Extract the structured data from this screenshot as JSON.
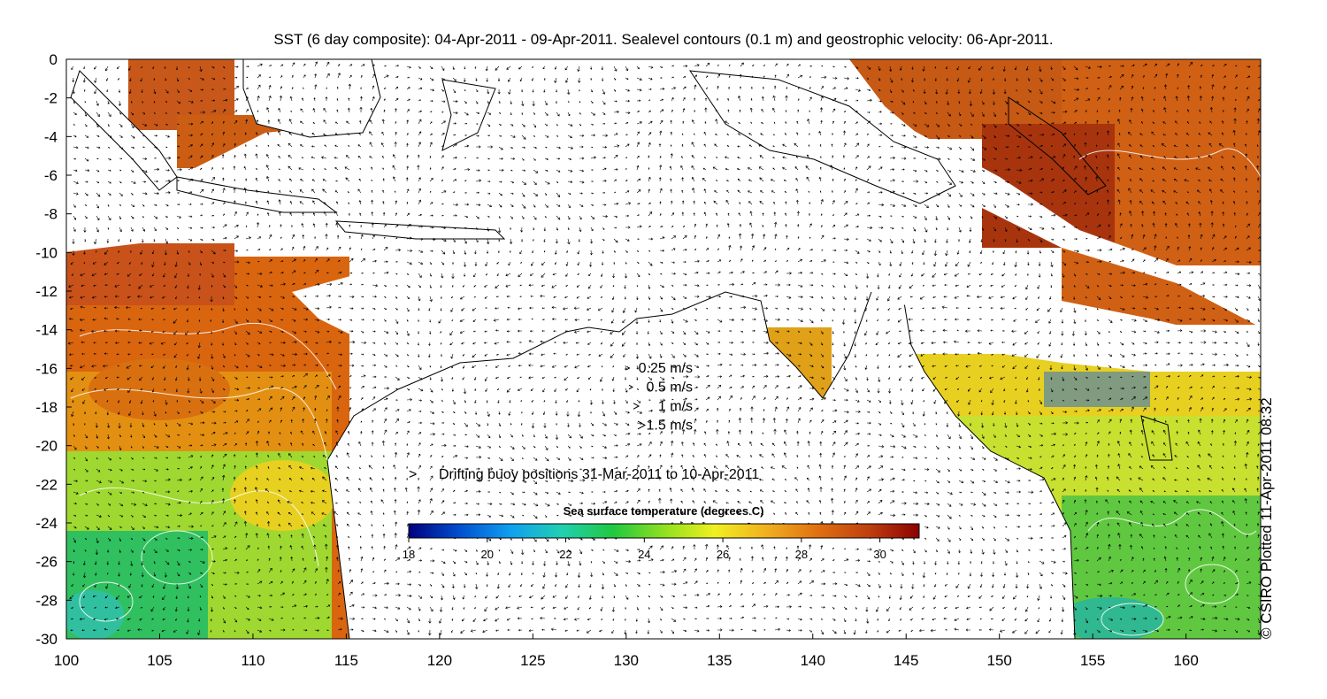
{
  "title": "SST (6 day composite): 04-Apr-2011 - 09-Apr-2011. Sealevel contours (0.1 m) and geostrophic velocity: 06-Apr-2011.",
  "credit": "© CSIRO Plotted 11-Apr-2011 08:32",
  "map": {
    "lon_range": [
      100,
      164
    ],
    "lat_range": [
      -30,
      0
    ],
    "x_ticks": [
      "100",
      "105",
      "110",
      "115",
      "120",
      "125",
      "130",
      "135",
      "140",
      "145",
      "150",
      "155",
      "160"
    ],
    "y_ticks": [
      "0",
      "-2",
      "-4",
      "-6",
      "-8",
      "-10",
      "-12",
      "-14",
      "-16",
      "-18",
      "-20",
      "-22",
      "-24",
      "-26",
      "-28",
      "-30"
    ]
  },
  "velocity_legend": [
    {
      "label": "0.25 m/s",
      "speed": 0.25
    },
    {
      "label": "0.5 m/s",
      "speed": 0.5
    },
    {
      "label": "1 m/s",
      "speed": 1
    },
    {
      "label": "1.5 m/s",
      "speed": 1.5
    }
  ],
  "buoy_legend": {
    "symbol": ">",
    "label": "Drifting buoy positions 31-Mar-2011 to 10-Apr-2011",
    "color": "#cc33cc"
  },
  "colorbar": {
    "title": "Sea surface temperature (degrees C)",
    "min": 18,
    "max": 31,
    "ticks": [
      "18",
      "20",
      "22",
      "24",
      "26",
      "28",
      "30"
    ],
    "colors": [
      "#000080",
      "#0050d0",
      "#10a0f0",
      "#20d0b0",
      "#20c840",
      "#90e020",
      "#f0f020",
      "#f0b020",
      "#e07010",
      "#c04010",
      "#8b0000"
    ]
  }
}
